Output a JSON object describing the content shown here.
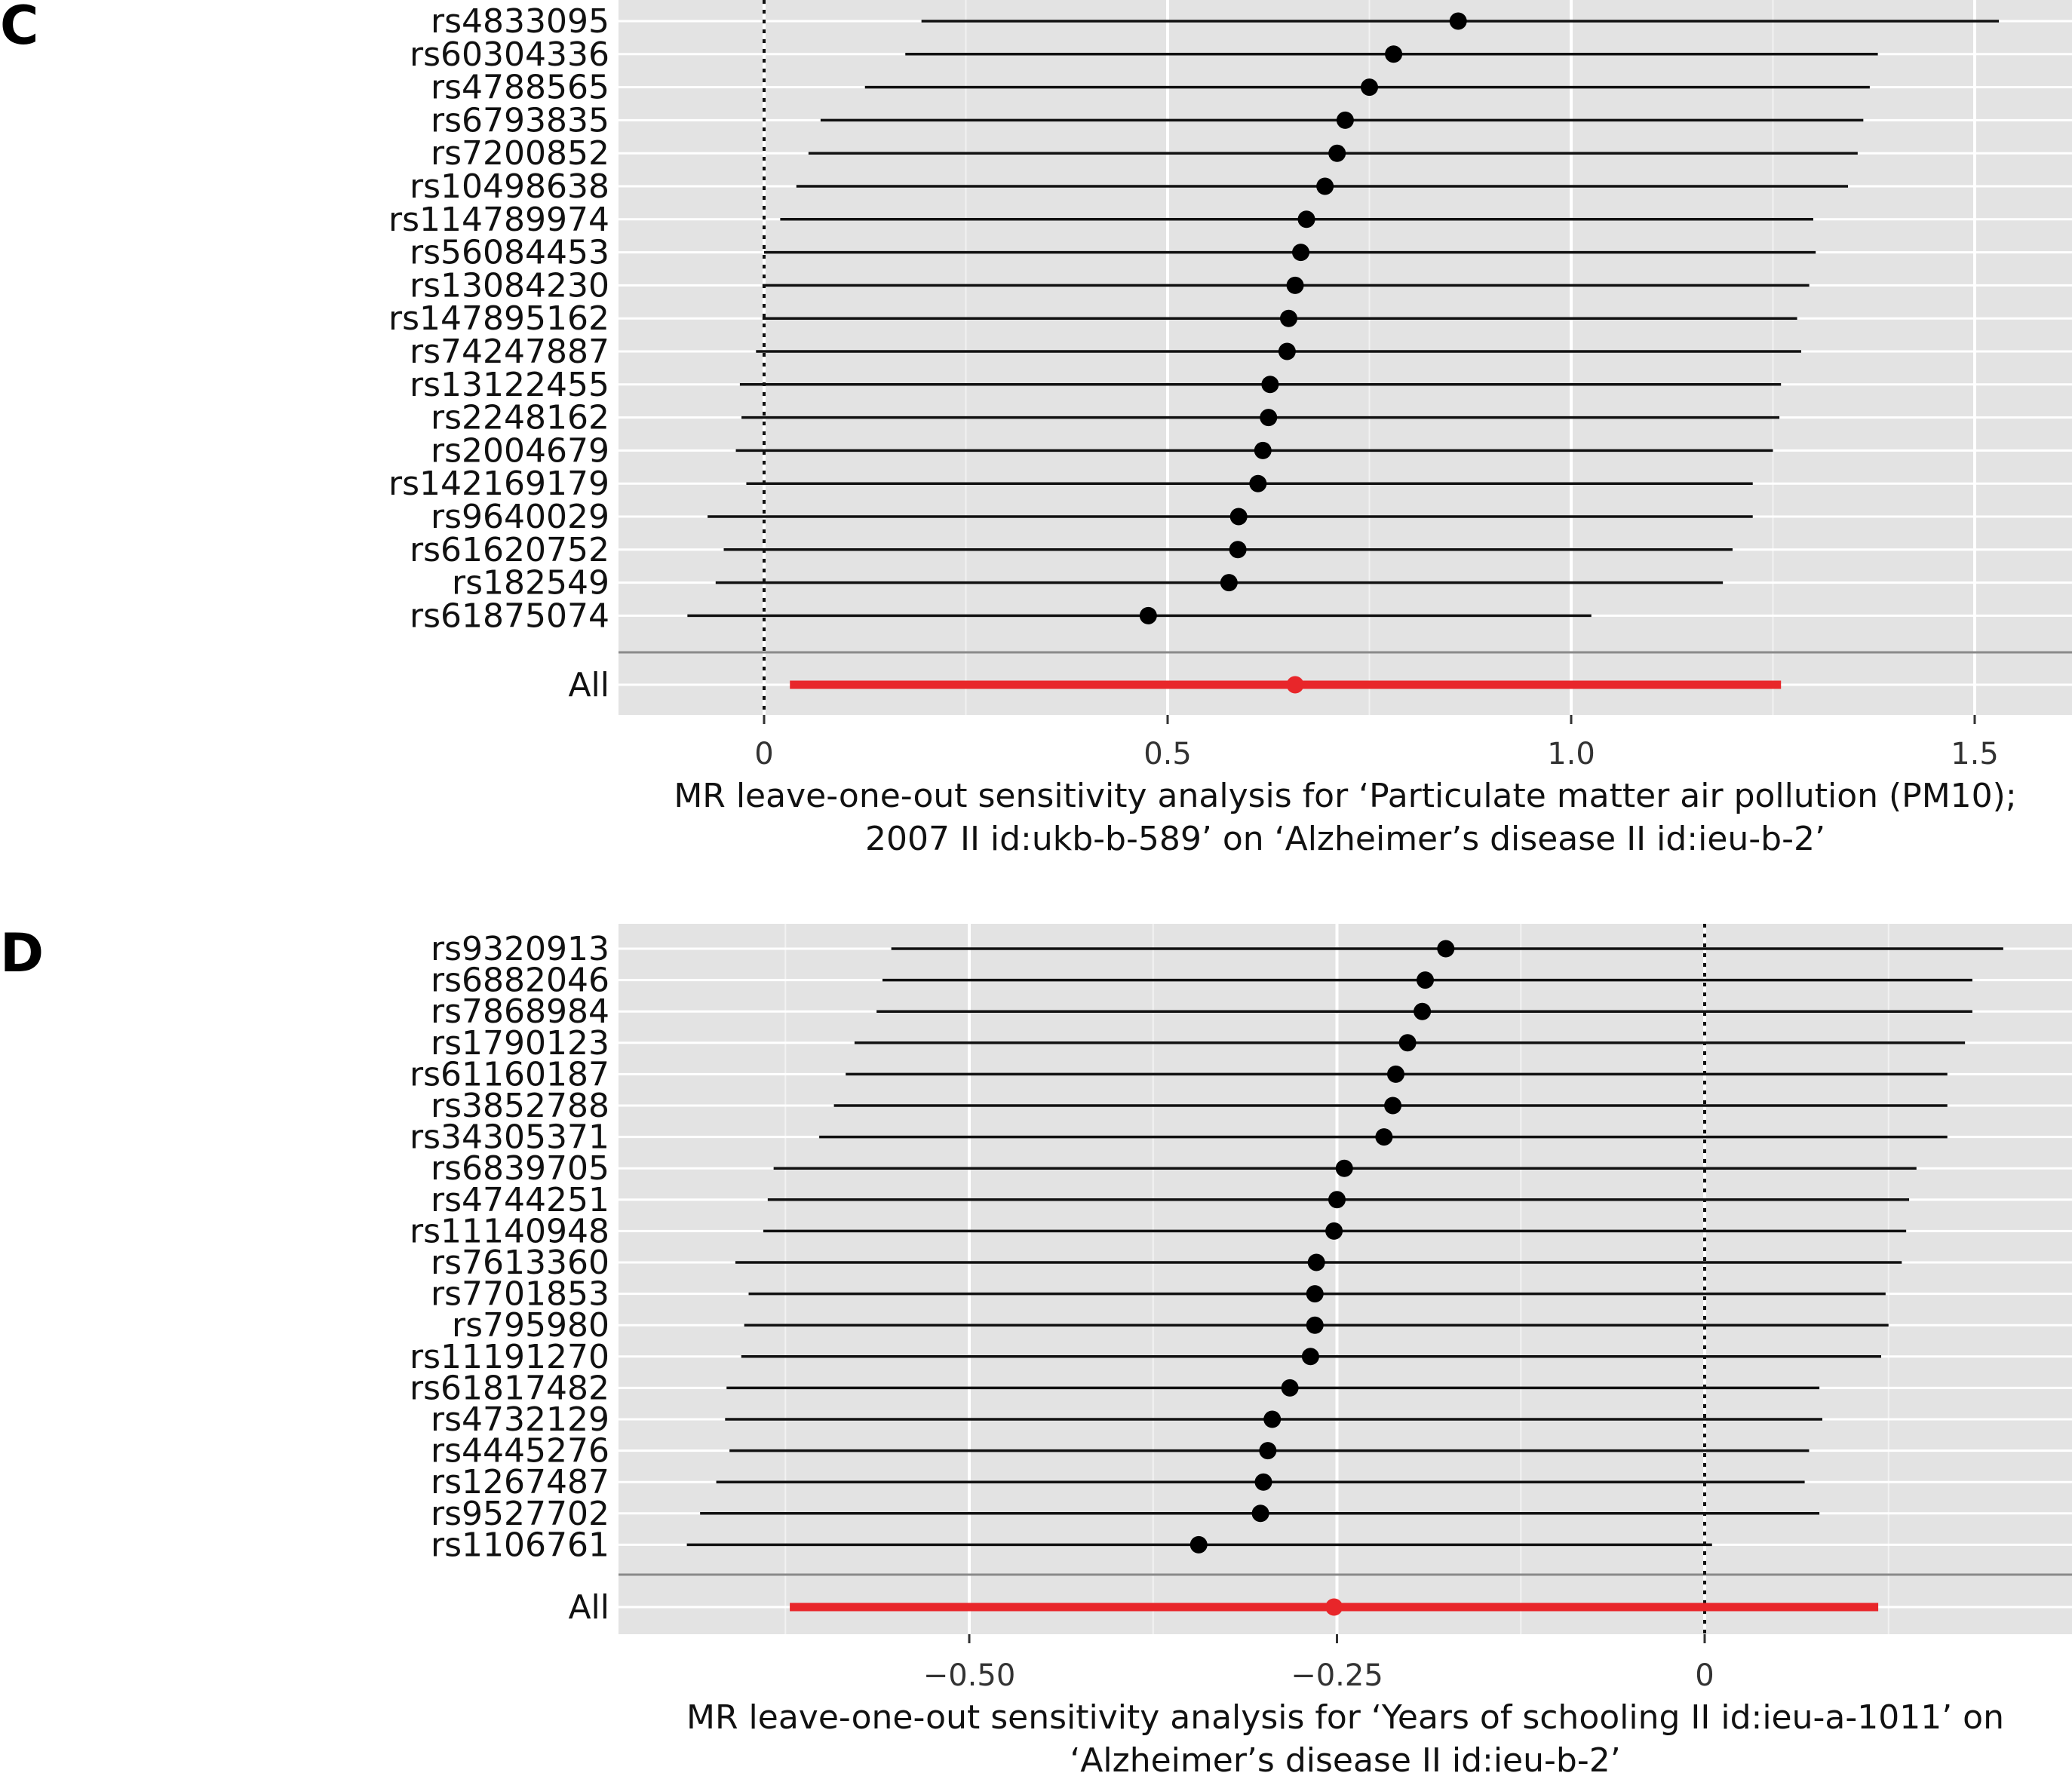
{
  "chart_data": [
    {
      "type": "forest",
      "panel_letter": "C",
      "x_ticks": [
        0,
        0.5,
        1.0,
        1.5
      ],
      "x_tick_labels": [
        "0",
        "0.5",
        "1.0",
        "1.5"
      ],
      "xlim": [
        -0.18,
        1.58
      ],
      "reference_line": 0,
      "xlabel_lines": [
        "MR leave-one-out sensitivity analysis for ‘Particulate matter air pollution (PM10);",
        "2007 II id:ukb-b-589’ on ‘Alzheimer’s disease II id:ieu-b-2’"
      ],
      "snps": [
        "rs4833095",
        "rs60304336",
        "rs4788565",
        "rs6793835",
        "rs7200852",
        "rs10498638",
        "rs114789974",
        "rs56084453",
        "rs13084230",
        "rs147895162",
        "rs74247887",
        "rs13122455",
        "rs2248162",
        "rs2004679",
        "rs142169179",
        "rs9640029",
        "rs61620752",
        "rs182549",
        "rs61875074"
      ],
      "estimates": [
        0.86,
        0.78,
        0.75,
        0.72,
        0.71,
        0.695,
        0.672,
        0.665,
        0.658,
        0.65,
        0.648,
        0.627,
        0.625,
        0.618,
        0.612,
        0.588,
        0.587,
        0.576,
        0.476
      ],
      "ci_lower": [
        0.195,
        0.175,
        0.125,
        0.07,
        0.055,
        0.04,
        0.02,
        0.0,
        -0.002,
        -0.002,
        -0.01,
        -0.03,
        -0.028,
        -0.035,
        -0.022,
        -0.07,
        -0.05,
        -0.06,
        -0.095
      ],
      "ci_upper": [
        1.53,
        1.38,
        1.37,
        1.362,
        1.355,
        1.343,
        1.3,
        1.303,
        1.295,
        1.28,
        1.285,
        1.26,
        1.258,
        1.25,
        1.225,
        1.225,
        1.2,
        1.188,
        1.025
      ],
      "overall": {
        "label": "All",
        "estimate": 0.658,
        "ci_lower": 0.032,
        "ci_upper": 1.26
      },
      "grid": true,
      "colors": {
        "panel_bg": "#e3e3e3",
        "grid": "#ffffff",
        "point": "#000000",
        "overall": "#e8262a"
      }
    },
    {
      "type": "forest",
      "panel_letter": "D",
      "x_ticks": [
        -0.5,
        -0.25,
        0
      ],
      "x_tick_labels": [
        "−0.50",
        "−0.25",
        "0"
      ],
      "xlim": [
        -0.735,
        0.21
      ],
      "reference_line": 0,
      "xlabel_lines": [
        "MR leave-one-out sensitivity analysis for ‘Years of schooling II id:ieu-a-1011’ on",
        "‘Alzheimer’s disease II id:ieu-b-2’"
      ],
      "snps": [
        "rs9320913",
        "rs6882046",
        "rs7868984",
        "rs1790123",
        "rs61160187",
        "rs3852788",
        "rs34305371",
        "rs6839705",
        "rs4744251",
        "rs11140948",
        "rs7613360",
        "rs7701853",
        "rs795980",
        "rs11191270",
        "rs61817482",
        "rs4732129",
        "rs4445276",
        "rs1267487",
        "rs9527702",
        "rs1106761"
      ],
      "estimates": [
        -0.176,
        -0.19,
        -0.192,
        -0.202,
        -0.21,
        -0.212,
        -0.218,
        -0.245,
        -0.25,
        -0.252,
        -0.264,
        -0.265,
        -0.265,
        -0.268,
        -0.282,
        -0.294,
        -0.297,
        -0.3,
        -0.302,
        -0.344
      ],
      "ci_lower": [
        -0.553,
        -0.559,
        -0.563,
        -0.578,
        -0.584,
        -0.592,
        -0.602,
        -0.633,
        -0.637,
        -0.64,
        -0.659,
        -0.65,
        -0.653,
        -0.655,
        -0.665,
        -0.666,
        -0.663,
        -0.672,
        -0.683,
        -0.692
      ],
      "ci_upper": [
        0.203,
        0.182,
        0.182,
        0.177,
        0.165,
        0.165,
        0.165,
        0.144,
        0.139,
        0.137,
        0.134,
        0.123,
        0.125,
        0.12,
        0.078,
        0.08,
        0.071,
        0.068,
        0.078,
        0.005
      ],
      "overall": {
        "label": "All",
        "estimate": -0.252,
        "ci_lower": -0.622,
        "ci_upper": 0.118
      },
      "grid": true,
      "colors": {
        "panel_bg": "#e3e3e3",
        "grid": "#ffffff",
        "point": "#000000",
        "overall": "#e8262a"
      }
    }
  ]
}
